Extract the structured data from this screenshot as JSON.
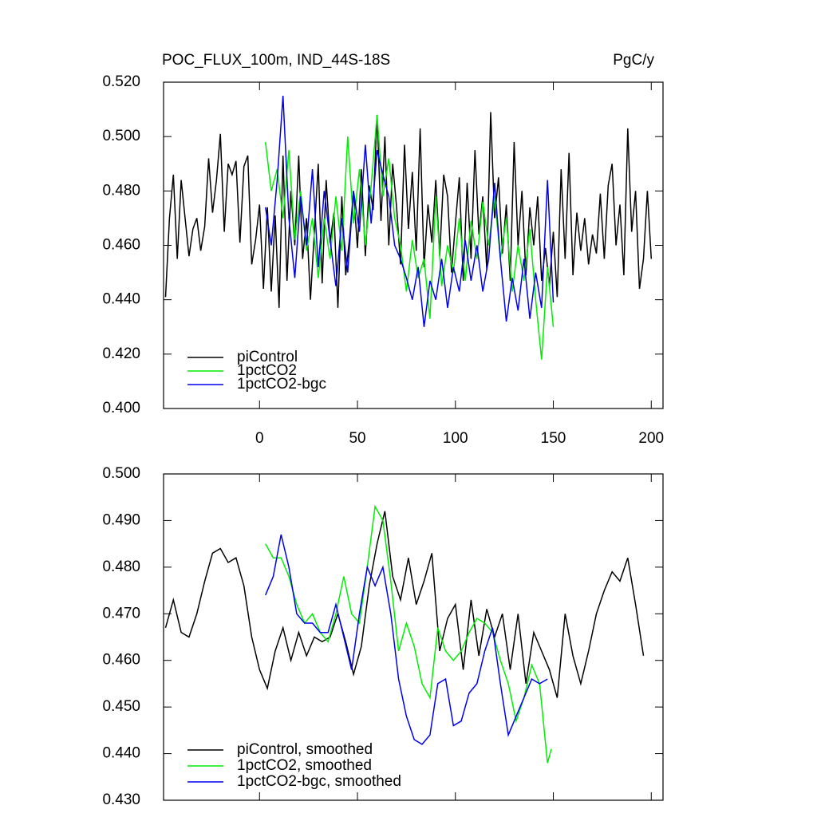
{
  "chart_data": [
    {
      "type": "line",
      "title": "POC_FLUX_100m, IND_44S-18S",
      "units": "PgC/y",
      "xlim": [
        -49,
        206
      ],
      "xticks": [
        0,
        50,
        100,
        150,
        200
      ],
      "ylim": [
        0.4,
        0.52
      ],
      "yticks": [
        {
          "value": 0.4,
          "label": "0.400"
        },
        {
          "value": 0.42,
          "label": "0.420"
        },
        {
          "value": 0.44,
          "label": "0.440"
        },
        {
          "value": 0.46,
          "label": "0.460"
        },
        {
          "value": 0.48,
          "label": "0.480"
        },
        {
          "value": 0.5,
          "label": "0.500"
        },
        {
          "value": 0.52,
          "label": "0.520"
        }
      ],
      "legend": "lower left",
      "series": [
        {
          "name": "piControl",
          "color": "#000000",
          "x": [
            -48,
            -46,
            -44,
            -42,
            -40,
            -38,
            -36,
            -34,
            -32,
            -30,
            -28,
            -26,
            -24,
            -22,
            -20,
            -18,
            -16,
            -14,
            -12,
            -10,
            -8,
            -6,
            -4,
            -2,
            0,
            2,
            4,
            6,
            8,
            10,
            12,
            14,
            16,
            18,
            20,
            22,
            24,
            26,
            28,
            30,
            32,
            34,
            36,
            38,
            40,
            42,
            44,
            46,
            48,
            50,
            52,
            54,
            56,
            58,
            60,
            62,
            64,
            66,
            68,
            70,
            72,
            74,
            76,
            78,
            80,
            82,
            84,
            86,
            88,
            90,
            92,
            94,
            96,
            98,
            100,
            102,
            104,
            106,
            108,
            110,
            112,
            114,
            116,
            118,
            120,
            122,
            124,
            126,
            128,
            130,
            132,
            134,
            136,
            138,
            140,
            142,
            144,
            146,
            148,
            150,
            152,
            154,
            156,
            158,
            160,
            162,
            164,
            166,
            168,
            170,
            172,
            174,
            176,
            178,
            180,
            182,
            184,
            186,
            188,
            190,
            192,
            194,
            196,
            198,
            200
          ],
          "values": [
            0.441,
            0.47,
            0.486,
            0.455,
            0.484,
            0.47,
            0.456,
            0.466,
            0.47,
            0.458,
            0.467,
            0.492,
            0.472,
            0.484,
            0.501,
            0.465,
            0.49,
            0.486,
            0.491,
            0.461,
            0.489,
            0.493,
            0.453,
            0.462,
            0.475,
            0.444,
            0.474,
            0.443,
            0.471,
            0.437,
            0.493,
            0.447,
            0.48,
            0.46,
            0.493,
            0.455,
            0.47,
            0.44,
            0.465,
            0.49,
            0.446,
            0.484,
            0.461,
            0.472,
            0.437,
            0.478,
            0.449,
            0.463,
            0.48,
            0.459,
            0.488,
            0.456,
            0.482,
            0.473,
            0.508,
            0.469,
            0.5,
            0.46,
            0.49,
            0.474,
            0.453,
            0.497,
            0.466,
            0.487,
            0.458,
            0.503,
            0.452,
            0.475,
            0.461,
            0.484,
            0.456,
            0.486,
            0.478,
            0.45,
            0.468,
            0.485,
            0.447,
            0.483,
            0.455,
            0.495,
            0.464,
            0.478,
            0.451,
            0.509,
            0.47,
            0.485,
            0.457,
            0.475,
            0.447,
            0.498,
            0.46,
            0.48,
            0.449,
            0.474,
            0.46,
            0.478,
            0.447,
            0.459,
            0.445,
            0.465,
            0.441,
            0.488,
            0.455,
            0.494,
            0.449,
            0.472,
            0.458,
            0.47,
            0.453,
            0.464,
            0.457,
            0.479,
            0.455,
            0.482,
            0.49,
            0.46,
            0.475,
            0.449,
            0.503,
            0.465,
            0.48,
            0.444,
            0.455,
            0.48,
            0.455
          ]
        },
        {
          "name": "1pctCO2",
          "color": "#00ee00",
          "x": [
            3,
            6,
            9,
            12,
            15,
            18,
            21,
            24,
            27,
            30,
            33,
            36,
            39,
            42,
            45,
            48,
            51,
            54,
            57,
            60,
            63,
            66,
            69,
            72,
            75,
            78,
            81,
            84,
            87,
            90,
            93,
            96,
            99,
            102,
            105,
            108,
            111,
            114,
            117,
            120,
            123,
            126,
            129,
            132,
            135,
            138,
            141,
            144,
            147,
            150
          ],
          "values": [
            0.498,
            0.48,
            0.488,
            0.47,
            0.495,
            0.462,
            0.48,
            0.458,
            0.47,
            0.448,
            0.47,
            0.455,
            0.478,
            0.458,
            0.5,
            0.468,
            0.488,
            0.46,
            0.482,
            0.508,
            0.478,
            0.492,
            0.47,
            0.46,
            0.443,
            0.462,
            0.448,
            0.455,
            0.433,
            0.478,
            0.445,
            0.46,
            0.45,
            0.47,
            0.447,
            0.469,
            0.455,
            0.476,
            0.46,
            0.478,
            0.455,
            0.47,
            0.443,
            0.46,
            0.447,
            0.466,
            0.44,
            0.418,
            0.452,
            0.43
          ]
        },
        {
          "name": "1pctCO2-bgc",
          "color": "#0000ee",
          "x": [
            3,
            6,
            9,
            12,
            15,
            18,
            21,
            24,
            27,
            30,
            33,
            36,
            39,
            42,
            45,
            48,
            51,
            54,
            57,
            60,
            63,
            66,
            69,
            72,
            75,
            78,
            81,
            84,
            87,
            90,
            93,
            96,
            99,
            102,
            105,
            108,
            111,
            114,
            117,
            120,
            123,
            126,
            129,
            132,
            135,
            138,
            141,
            144,
            147,
            150
          ],
          "values": [
            0.474,
            0.46,
            0.484,
            0.515,
            0.47,
            0.448,
            0.478,
            0.46,
            0.488,
            0.452,
            0.48,
            0.462,
            0.445,
            0.47,
            0.45,
            0.48,
            0.465,
            0.497,
            0.468,
            0.495,
            0.486,
            0.478,
            0.46,
            0.455,
            0.448,
            0.44,
            0.452,
            0.43,
            0.447,
            0.44,
            0.455,
            0.437,
            0.452,
            0.443,
            0.462,
            0.447,
            0.46,
            0.443,
            0.455,
            0.483,
            0.455,
            0.432,
            0.448,
            0.436,
            0.455,
            0.433,
            0.45,
            0.437,
            0.484,
            0.439
          ]
        }
      ]
    },
    {
      "type": "line",
      "xlim": [
        -49,
        206
      ],
      "ylim": [
        0.43,
        0.5
      ],
      "yticks": [
        {
          "value": 0.43,
          "label": "0.430"
        },
        {
          "value": 0.44,
          "label": "0.440"
        },
        {
          "value": 0.45,
          "label": "0.450"
        },
        {
          "value": 0.46,
          "label": "0.460"
        },
        {
          "value": 0.47,
          "label": "0.470"
        },
        {
          "value": 0.48,
          "label": "0.480"
        },
        {
          "value": 0.49,
          "label": "0.490"
        },
        {
          "value": 0.5,
          "label": "0.500"
        }
      ],
      "legend": "lower left",
      "series": [
        {
          "name": "piControl, smoothed",
          "color": "#000000",
          "x": [
            -48,
            -44,
            -40,
            -36,
            -32,
            -28,
            -24,
            -20,
            -16,
            -12,
            -8,
            -4,
            0,
            4,
            8,
            12,
            16,
            20,
            24,
            28,
            32,
            36,
            40,
            44,
            48,
            52,
            56,
            60,
            64,
            68,
            72,
            76,
            80,
            84,
            88,
            92,
            96,
            100,
            104,
            108,
            112,
            116,
            120,
            124,
            128,
            132,
            136,
            140,
            144,
            148,
            152,
            156,
            160,
            164,
            168,
            172,
            176,
            180,
            184,
            188,
            192,
            196
          ],
          "values": [
            0.467,
            0.473,
            0.466,
            0.465,
            0.47,
            0.477,
            0.483,
            0.484,
            0.481,
            0.482,
            0.476,
            0.465,
            0.458,
            0.454,
            0.462,
            0.467,
            0.46,
            0.466,
            0.461,
            0.465,
            0.464,
            0.465,
            0.47,
            0.464,
            0.457,
            0.463,
            0.476,
            0.485,
            0.492,
            0.478,
            0.473,
            0.482,
            0.472,
            0.477,
            0.483,
            0.462,
            0.469,
            0.472,
            0.458,
            0.473,
            0.461,
            0.471,
            0.465,
            0.47,
            0.458,
            0.47,
            0.455,
            0.466,
            0.462,
            0.458,
            0.452,
            0.47,
            0.461,
            0.455,
            0.462,
            0.47,
            0.475,
            0.479,
            0.477,
            0.482,
            0.472,
            0.461
          ]
        },
        {
          "name": "1pctCO2, smoothed",
          "color": "#00ee00",
          "x": [
            3,
            7,
            11,
            15,
            19,
            23,
            27,
            31,
            35,
            39,
            43,
            47,
            51,
            55,
            59,
            63,
            67,
            71,
            75,
            79,
            83,
            87,
            91,
            95,
            99,
            103,
            107,
            111,
            115,
            119,
            123,
            127,
            131,
            135,
            139,
            143,
            147,
            149
          ],
          "values": [
            0.485,
            0.482,
            0.482,
            0.478,
            0.472,
            0.468,
            0.47,
            0.466,
            0.464,
            0.47,
            0.478,
            0.47,
            0.468,
            0.48,
            0.493,
            0.49,
            0.477,
            0.462,
            0.468,
            0.463,
            0.455,
            0.452,
            0.467,
            0.462,
            0.46,
            0.462,
            0.466,
            0.469,
            0.468,
            0.466,
            0.46,
            0.455,
            0.447,
            0.452,
            0.459,
            0.455,
            0.438,
            0.441
          ]
        },
        {
          "name": "1pctCO2-bgc, smoothed",
          "color": "#0000ee",
          "x": [
            3,
            7,
            11,
            15,
            19,
            23,
            27,
            31,
            35,
            39,
            43,
            47,
            51,
            55,
            59,
            63,
            67,
            71,
            75,
            79,
            83,
            87,
            91,
            95,
            99,
            103,
            107,
            111,
            115,
            119,
            123,
            127,
            131,
            135,
            139,
            143,
            147
          ],
          "values": [
            0.474,
            0.478,
            0.487,
            0.48,
            0.47,
            0.468,
            0.468,
            0.466,
            0.466,
            0.472,
            0.465,
            0.458,
            0.47,
            0.48,
            0.476,
            0.48,
            0.47,
            0.456,
            0.448,
            0.443,
            0.442,
            0.444,
            0.455,
            0.456,
            0.446,
            0.447,
            0.453,
            0.455,
            0.462,
            0.467,
            0.455,
            0.444,
            0.448,
            0.452,
            0.456,
            0.455,
            0.456
          ]
        }
      ]
    }
  ]
}
